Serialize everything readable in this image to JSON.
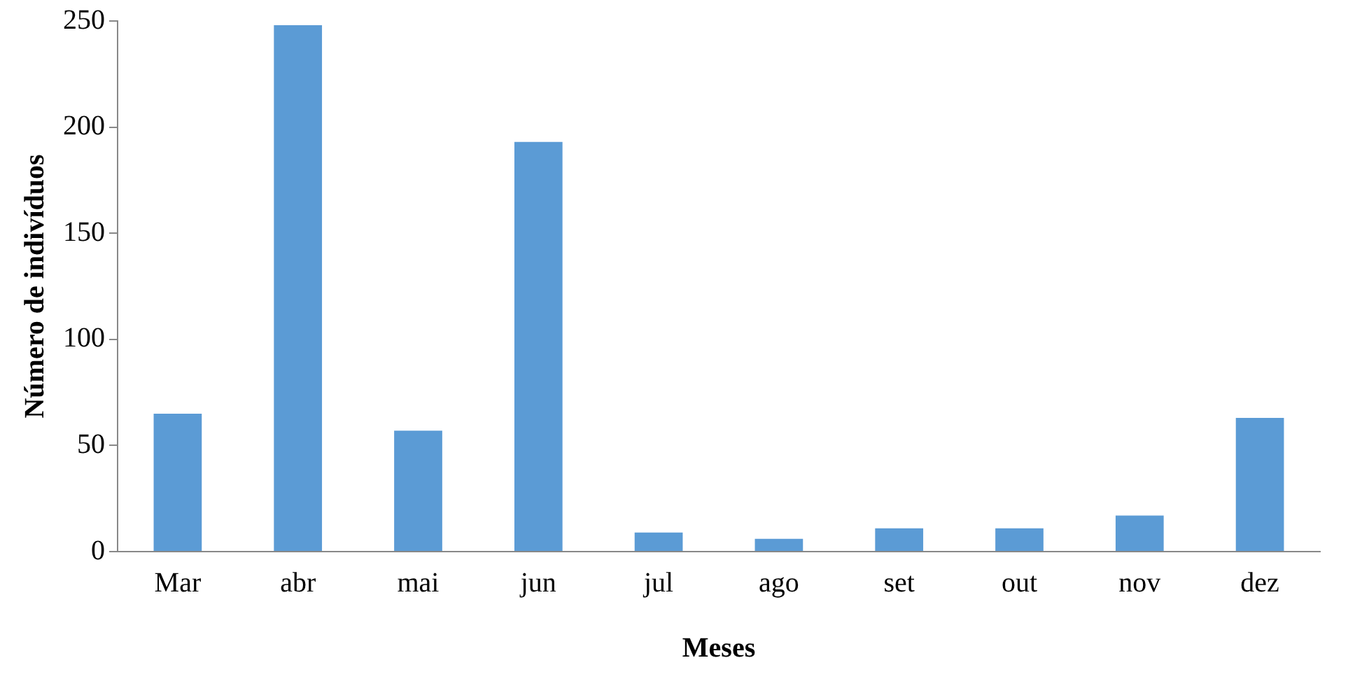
{
  "chart_data": {
    "type": "bar",
    "xlabel": "Meses",
    "ylabel": "Número de indivíduos",
    "categories": [
      "Mar",
      "abr",
      "mai",
      "jun",
      "jul",
      "ago",
      "set",
      "out",
      "nov",
      "dez"
    ],
    "values": [
      65,
      248,
      57,
      193,
      9,
      6,
      11,
      11,
      17,
      63
    ],
    "color": "#5b9bd5",
    "ylim": [
      0,
      250
    ],
    "yticks": [
      0,
      50,
      100,
      150,
      200,
      250
    ],
    "grid": false,
    "legend": false
  }
}
